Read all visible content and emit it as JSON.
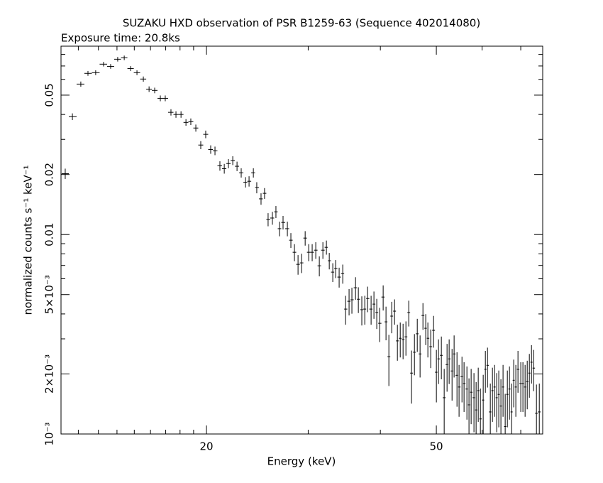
{
  "chart_data": {
    "type": "errorbar",
    "title": "SUZAKU HXD observation of PSR B1259-63 (Sequence 402014080)",
    "subtitle": "Exposure time: 20.8ks",
    "xlabel": "Energy (keV)",
    "ylabel": "normalized counts s⁻¹ keV⁻¹",
    "xscale": "log",
    "yscale": "log",
    "color": "#000000",
    "xlim": [
      11.2,
      76.4
    ],
    "ylim": [
      0.001,
      0.088
    ],
    "xticks": [
      20,
      50
    ],
    "xminorticks": [
      12,
      13,
      14,
      15,
      16,
      17,
      18,
      19,
      30,
      40,
      60,
      70
    ],
    "yticks": [
      {
        "value": 0.001,
        "label": "10⁻³"
      },
      {
        "value": 0.002,
        "label": "2×10⁻³"
      },
      {
        "value": 0.005,
        "label": "5×10⁻³"
      },
      0.01,
      0.02,
      0.05
    ],
    "yminorticks": [
      0.003,
      0.004,
      0.006,
      0.007,
      0.008,
      0.009,
      0.03,
      0.04,
      0.06,
      0.07,
      0.08
    ],
    "x": [
      11.39,
      11.72,
      12.12,
      12.47,
      12.86,
      13.27,
      13.65,
      14.04,
      14.41,
      14.78,
      15.16,
      15.55,
      15.91,
      16.27,
      16.64,
      16.97,
      17.36,
      17.71,
      18.07,
      18.43,
      18.79,
      19.17,
      19.55,
      19.94,
      20.34,
      20.69,
      21.1,
      21.47,
      21.83,
      22.21,
      22.59,
      22.97,
      23.37,
      23.7,
      24.11,
      24.44,
      24.86,
      25.21,
      25.57,
      26.01,
      26.38,
      26.76,
      27.14,
      27.61,
      28.0,
      28.4,
      28.81,
      29.22,
      29.64,
      30.06,
      30.48,
      30.92,
      31.36,
      31.81,
      32.26,
      32.63,
      33.09,
      33.47,
      33.94,
      34.43,
      34.82,
      35.31,
      35.71,
      36.23,
      36.64,
      37.15,
      37.59,
      38.01,
      38.55,
      38.99,
      39.43,
      39.89,
      40.45,
      40.91,
      41.38,
      41.85,
      42.33,
      42.81,
      43.3,
      43.79,
      44.29,
      44.79,
      45.29,
      45.82,
      46.34,
      46.86,
      47.4,
      47.93,
      48.34,
      48.89,
      49.45,
      50.01,
      50.43,
      51.01,
      51.59,
      52.18,
      52.62,
      53.23,
      53.67,
      54.29,
      54.74,
      55.38,
      55.84,
      56.48,
      56.95,
      57.44,
      58.09,
      58.59,
      59.09,
      59.6,
      60.27,
      60.79,
      61.31,
      62.0,
      62.53,
      63.06,
      63.6,
      64.13,
      64.68,
      65.23,
      65.79,
      66.36,
      66.92,
      67.5,
      68.06,
      68.64,
      69.23,
      70.01,
      70.61,
      71.22,
      71.83,
      72.44,
      73.06,
      73.67,
      74.52,
      75.37
    ],
    "values": [
      0.0202,
      0.039,
      0.0568,
      0.0643,
      0.0648,
      0.0715,
      0.0697,
      0.0757,
      0.0769,
      0.068,
      0.0648,
      0.0602,
      0.0536,
      0.0528,
      0.0482,
      0.0482,
      0.041,
      0.04,
      0.04,
      0.0365,
      0.0368,
      0.0342,
      0.0281,
      0.0318,
      0.0267,
      0.0263,
      0.0221,
      0.0214,
      0.0227,
      0.0235,
      0.022,
      0.0204,
      0.0183,
      0.0185,
      0.0204,
      0.0172,
      0.0151,
      0.0161,
      0.0119,
      0.0121,
      0.013,
      0.0107,
      0.0115,
      0.0107,
      0.00937,
      0.00815,
      0.00709,
      0.00721,
      0.0096,
      0.00815,
      0.00815,
      0.00835,
      0.00697,
      0.00835,
      0.00863,
      0.00739,
      0.00648,
      0.00675,
      0.00612,
      0.00637,
      0.00423,
      0.00463,
      0.00471,
      0.00541,
      0.00474,
      0.0042,
      0.00423,
      0.00478,
      0.00423,
      0.00448,
      0.00406,
      0.00359,
      0.00486,
      0.00365,
      0.00244,
      0.0039,
      0.00413,
      0.00293,
      0.00302,
      0.00297,
      0.00307,
      0.00406,
      0.00202,
      0.00257,
      0.00318,
      0.00252,
      0.00393,
      0.00339,
      0.00302,
      0.00274,
      0.00331,
      0.00204,
      0.00238,
      0.00248,
      0.00152,
      0.00223,
      0.00238,
      0.00207,
      0.00252,
      0.00197,
      0.00172,
      0.00194,
      0.00179,
      0.00168,
      0.0014,
      0.00162,
      0.00152,
      0.00132,
      0.00165,
      0.00119,
      0.00148,
      0.00211,
      0.00221,
      0.00129,
      0.00165,
      0.00172,
      0.00152,
      0.00158,
      0.00138,
      0.00172,
      0.00109,
      0.00158,
      0.00168,
      0.00129,
      0.00186,
      0.00172,
      0.00211,
      0.00179,
      0.00179,
      0.00172,
      0.00183,
      0.00202,
      0.00229,
      0.00214,
      0.00127,
      0.00129
    ],
    "errors": [
      0.0012,
      0.0015,
      0.0017,
      0.0018,
      0.0018,
      0.0019,
      0.0019,
      0.002,
      0.002,
      0.0019,
      0.0018,
      0.0018,
      0.0017,
      0.0017,
      0.0016,
      0.0016,
      0.0015,
      0.0015,
      0.0015,
      0.0014,
      0.0014,
      0.0014,
      0.0013,
      0.0014,
      0.0013,
      0.0013,
      0.0012,
      0.0012,
      0.0012,
      0.0012,
      0.0012,
      0.0011,
      0.0011,
      0.0011,
      0.0011,
      0.0011,
      0.001,
      0.001,
      0.0009,
      0.0009,
      0.0009,
      0.0009,
      0.0009,
      0.0009,
      0.0008,
      0.0008,
      0.0008,
      0.0008,
      0.0008,
      0.0008,
      0.0008,
      0.0008,
      0.0008,
      0.0008,
      0.0007,
      0.0007,
      0.0007,
      0.0007,
      0.0007,
      0.0007,
      0.0007,
      0.0007,
      0.0007,
      0.0007,
      0.0007,
      0.0007,
      0.0007,
      0.0007,
      0.0007,
      0.0007,
      0.0007,
      0.0007,
      0.0007,
      0.0007,
      0.0007,
      0.0007,
      0.0006,
      0.0006,
      0.0006,
      0.0006,
      0.0006,
      0.0006,
      0.0006,
      0.0006,
      0.0006,
      0.0006,
      0.0006,
      0.0006,
      0.0006,
      0.0006,
      0.0006,
      0.0006,
      0.0006,
      0.0006,
      0.0006,
      0.0006,
      0.0006,
      0.0006,
      0.0006,
      0.0006,
      0.0005,
      0.0005,
      0.0005,
      0.0005,
      0.0005,
      0.0005,
      0.0005,
      0.0005,
      0.0005,
      0.0005,
      0.0005,
      0.0005,
      0.0005,
      0.0005,
      0.0005,
      0.0005,
      0.0005,
      0.0005,
      0.0005,
      0.0005,
      0.0005,
      0.0005,
      0.0005,
      0.0005,
      0.0005,
      0.0005,
      0.0005,
      0.0005,
      0.0005,
      0.0005,
      0.0005,
      0.0005,
      0.0005,
      0.0005,
      0.0005,
      0.0005
    ]
  }
}
